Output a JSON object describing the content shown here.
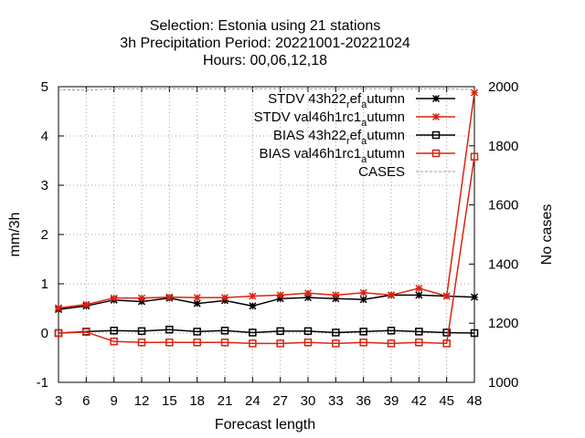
{
  "chart_data": {
    "type": "line",
    "title_lines": [
      "Selection: Estonia using    21 stations",
      "3h Precipitation   Period: 20221001-20221024",
      "Hours:  00,06,12,18"
    ],
    "xlabel": "Forecast length",
    "ylabel": "mm/3h",
    "y2label": "No cases",
    "x": [
      3,
      6,
      9,
      12,
      15,
      18,
      21,
      24,
      27,
      30,
      33,
      36,
      39,
      42,
      45,
      48
    ],
    "xlim": [
      3,
      48
    ],
    "ylim": [
      -1,
      5
    ],
    "y2lim": [
      1000,
      2000
    ],
    "yticks": [
      "-1",
      "0",
      "1",
      "2",
      "3",
      "4",
      "5"
    ],
    "y2ticks": [
      "1000",
      "1200",
      "1400",
      "1600",
      "1800",
      "2000"
    ],
    "grid": true,
    "legend_position": "top-right",
    "series": [
      {
        "name": "STDV 43h22_ref_autumn",
        "label_parts": [
          "STDV 43h22",
          "r",
          "ef",
          "a",
          "utumn"
        ],
        "color": "#000000",
        "marker": "star",
        "axis": "y",
        "values": [
          0.48,
          0.55,
          0.67,
          0.64,
          0.71,
          0.6,
          0.66,
          0.55,
          0.7,
          0.72,
          0.7,
          0.68,
          0.77,
          0.77,
          0.75,
          0.73
        ]
      },
      {
        "name": "STDV val46h1rc1_autumn",
        "label_parts": [
          "STDV val46h1rc1",
          "",
          "",
          "a",
          "utumn"
        ],
        "color": "#dd2211",
        "marker": "star",
        "axis": "y",
        "values": [
          0.51,
          0.58,
          0.71,
          0.71,
          0.73,
          0.72,
          0.72,
          0.75,
          0.77,
          0.81,
          0.77,
          0.82,
          0.77,
          0.91,
          0.75,
          4.88
        ]
      },
      {
        "name": "BIAS 43h22_ref_autumn",
        "label_parts": [
          "BIAS 43h22",
          "r",
          "ef",
          "a",
          "utumn"
        ],
        "color": "#000000",
        "marker": "square",
        "axis": "y",
        "values": [
          0.0,
          0.03,
          0.05,
          0.04,
          0.07,
          0.03,
          0.05,
          0.01,
          0.04,
          0.04,
          0.01,
          0.03,
          0.05,
          0.03,
          0.01,
          0.0
        ]
      },
      {
        "name": "BIAS val46h1rc1_autumn",
        "label_parts": [
          "BIAS val46h1rc1",
          "",
          "",
          "a",
          "utumn"
        ],
        "color": "#dd2211",
        "marker": "square",
        "axis": "y",
        "values": [
          0.0,
          0.02,
          -0.17,
          -0.19,
          -0.19,
          -0.19,
          -0.19,
          -0.21,
          -0.21,
          -0.19,
          -0.21,
          -0.19,
          -0.21,
          -0.19,
          -0.21,
          3.58
        ]
      },
      {
        "name": "CASES",
        "label_parts": [
          "CASES"
        ],
        "color": "#999999",
        "marker": "none",
        "dashed": true,
        "axis": "y2",
        "values": [
          1990,
          1988,
          1993,
          1993,
          1993,
          1993,
          1993,
          1993,
          1993,
          1993,
          1993,
          1993,
          1993,
          1993,
          1993,
          1990
        ]
      }
    ]
  }
}
